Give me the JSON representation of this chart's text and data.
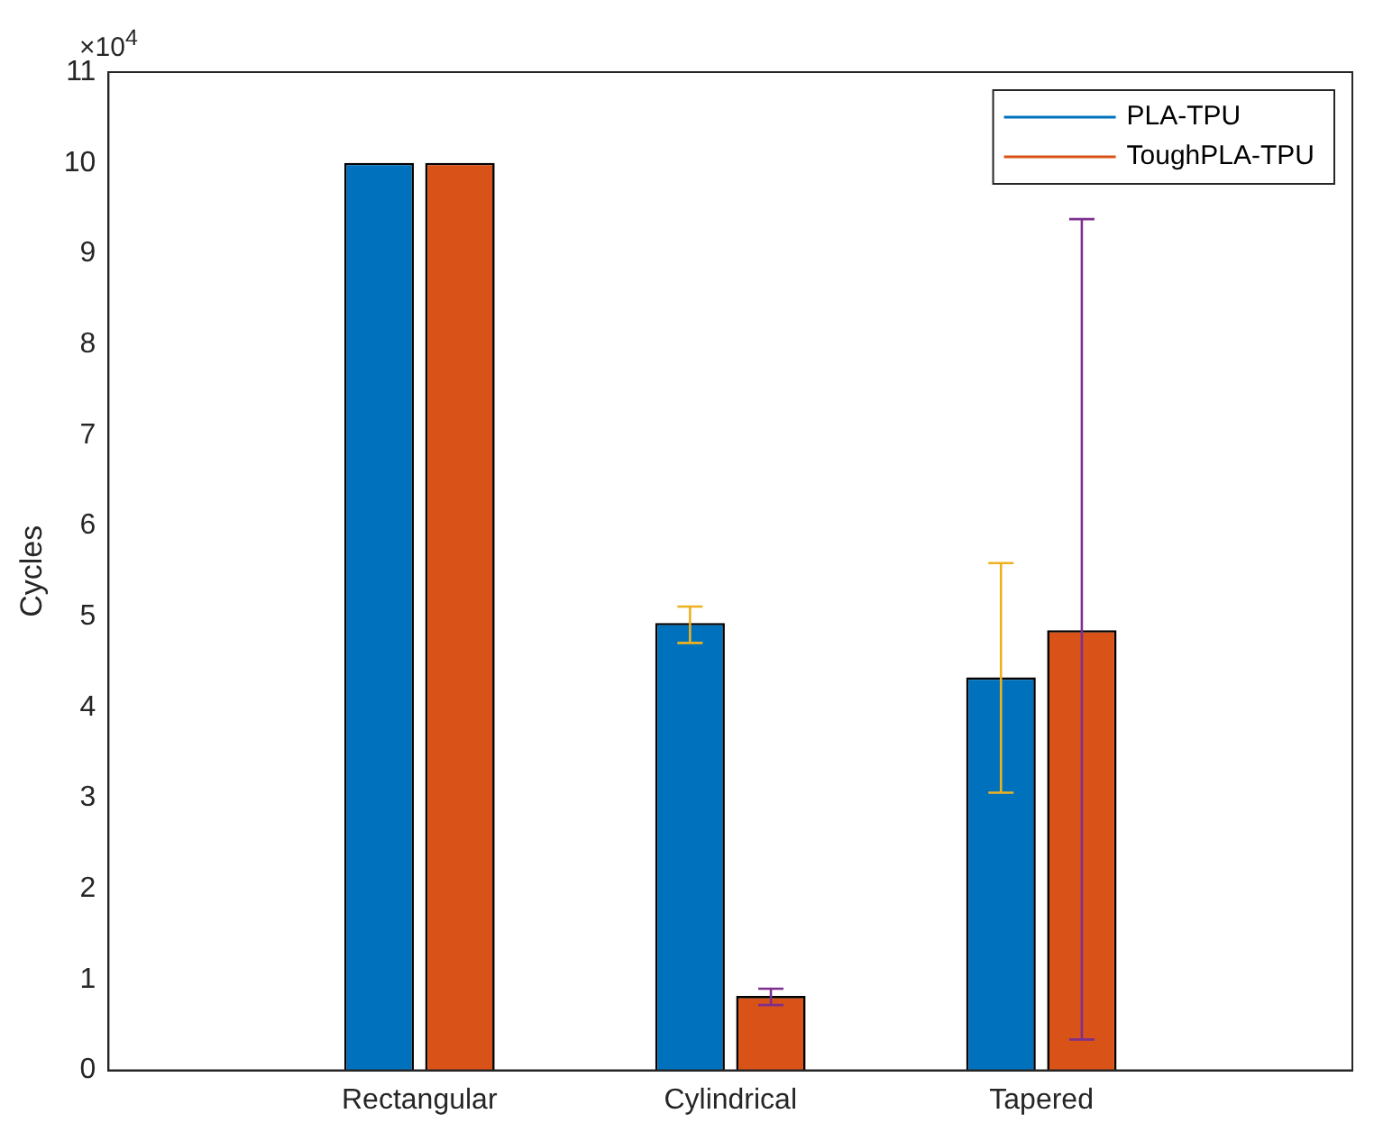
{
  "chart_data": {
    "type": "bar",
    "ylabel": "Cycles",
    "annotations": [
      "×10$^{4}$"
    ],
    "categories": [
      "Rectangular",
      "Cylindrical",
      "Tapered"
    ],
    "series": [
      {
        "name": "PLA-TPU",
        "color": "#0072bd",
        "values": [
          10,
          4.93,
          4.33
        ],
        "errors": [
          null,
          [
            4.71,
            5.11
          ],
          [
            3.06,
            5.59
          ]
        ]
      },
      {
        "name": "ToughPLA-TPU",
        "color": "#d95319",
        "values": [
          10,
          0.82,
          4.85
        ],
        "errors": [
          null,
          [
            0.72,
            0.9
          ],
          [
            0.34,
            9.38
          ]
        ]
      }
    ],
    "ylim": [
      0,
      11
    ],
    "yticks": [
      0,
      1,
      2,
      3,
      4,
      5,
      6,
      7,
      8,
      9,
      10,
      11
    ],
    "grid": false,
    "legend": "top right"
  }
}
